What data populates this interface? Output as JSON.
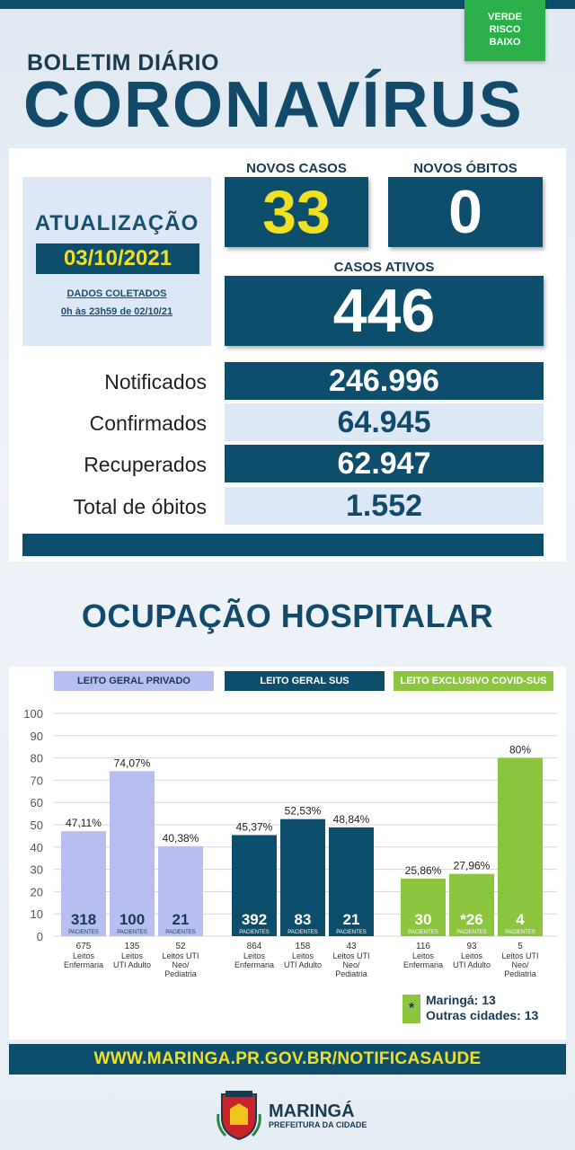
{
  "header": {
    "risk_badge": [
      "VERDE",
      "RISCO",
      "BAIXO"
    ],
    "bulletin_label": "BOLETIM DIÁRIO",
    "title": "CORONAVÍRUS"
  },
  "update": {
    "title": "ATUALIZAÇÃO",
    "date": "03/10/2021",
    "note_line1": "DADOS COLETADOS",
    "note_line2": "0h às 23h59 de 02/10/21"
  },
  "stats": {
    "new_cases_label": "NOVOS CASOS",
    "new_cases_value": "33",
    "new_deaths_label": "NOVOS ÓBITOS",
    "new_deaths_value": "0",
    "active_label": "CASOS ATIVOS",
    "active_value": "446"
  },
  "totals": [
    {
      "label": "Notificados",
      "value": "246.996"
    },
    {
      "label": "Confirmados",
      "value": "64.945"
    },
    {
      "label": "Recuperados",
      "value": "62.947"
    },
    {
      "label": "Total de óbitos",
      "value": "1.552"
    }
  ],
  "hospital": {
    "title": "OCUPAÇÃO HOSPITALAR",
    "unit_label": "PACIENTES"
  },
  "colors": {
    "navy": "#0e4e6d",
    "yellow": "#f0e024",
    "lavender": "#b7bff0",
    "green": "#8cc63f",
    "risk_green": "#2bb04a",
    "light_blue": "#dde8f6"
  },
  "chart_data": {
    "type": "bar",
    "ylim": [
      0,
      100
    ],
    "yticks": [
      "0",
      "10",
      "20",
      "30",
      "40",
      "50",
      "60",
      "70",
      "80",
      "90",
      "100"
    ],
    "groups": [
      {
        "name": "LEITO GERAL PRIVADO",
        "color": "#b7bff0",
        "header_color": "#b7bff0",
        "header_text_color": "#1a3a52",
        "bars": [
          {
            "pct": 47.11,
            "label": "47,11%",
            "patients": "318",
            "beds": "675",
            "desc": [
              "Leitos",
              "Enfermaria"
            ]
          },
          {
            "pct": 74.07,
            "label": "74,07%",
            "patients": "100",
            "beds": "135",
            "desc": [
              "Leitos",
              "UTI Adulto"
            ]
          },
          {
            "pct": 40.38,
            "label": "40,38%",
            "patients": "21",
            "beds": "52",
            "desc": [
              "Leitos UTI",
              "Neo/",
              "Pediatria"
            ]
          }
        ]
      },
      {
        "name": "LEITO GERAL SUS",
        "color": "#0e4e6d",
        "header_color": "#0e4e6d",
        "header_text_color": "#ffffff",
        "bars": [
          {
            "pct": 45.37,
            "label": "45,37%",
            "patients": "392",
            "beds": "864",
            "desc": [
              "Leitos",
              "Enfermaria"
            ]
          },
          {
            "pct": 52.53,
            "label": "52,53%",
            "patients": "83",
            "beds": "158",
            "desc": [
              "Leitos",
              "UTI Adulto"
            ]
          },
          {
            "pct": 48.84,
            "label": "48,84%",
            "patients": "21",
            "beds": "43",
            "desc": [
              "Leitos UTI",
              "Neo/",
              "Pediatria"
            ]
          }
        ]
      },
      {
        "name": "LEITO EXCLUSIVO COVID-SUS",
        "color": "#8cc63f",
        "header_color": "#8cc63f",
        "header_text_color": "#ffffff",
        "bars": [
          {
            "pct": 25.86,
            "label": "25,86%",
            "patients": "30",
            "beds": "116",
            "desc": [
              "Leitos",
              "Enfermaria"
            ]
          },
          {
            "pct": 27.96,
            "label": "27,96%",
            "patients": "*26",
            "beds": "93",
            "desc": [
              "Leitos",
              "UTI Adulto"
            ]
          },
          {
            "pct": 80,
            "label": "80%",
            "patients": "4",
            "beds": "5",
            "desc": [
              "Leitos UTI",
              "Neo/",
              "Pediatria"
            ]
          }
        ]
      }
    ]
  },
  "legend": {
    "symbol": "*",
    "line1": "Maringá: 13",
    "line2": "Outras cidades: 13"
  },
  "footer": {
    "url": "WWW.MARINGA.PR.GOV.BR/NOTIFICASAUDE",
    "city": "MARINGÁ",
    "city_sub": "PREFEITURA DA CIDADE"
  }
}
